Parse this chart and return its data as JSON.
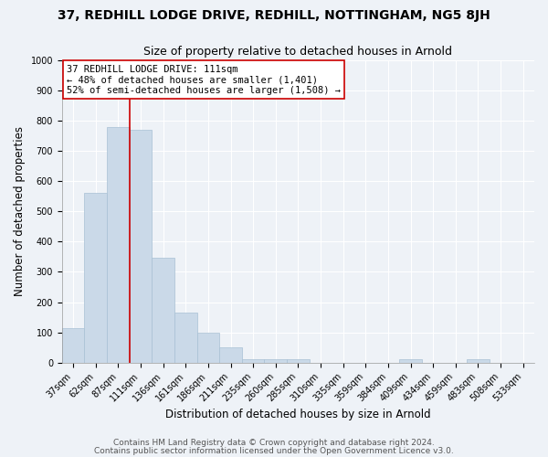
{
  "title": "37, REDHILL LODGE DRIVE, REDHILL, NOTTINGHAM, NG5 8JH",
  "subtitle": "Size of property relative to detached houses in Arnold",
  "xlabel": "Distribution of detached houses by size in Arnold",
  "ylabel": "Number of detached properties",
  "bar_labels": [
    "37sqm",
    "62sqm",
    "87sqm",
    "111sqm",
    "136sqm",
    "161sqm",
    "186sqm",
    "211sqm",
    "235sqm",
    "260sqm",
    "285sqm",
    "310sqm",
    "335sqm",
    "359sqm",
    "384sqm",
    "409sqm",
    "434sqm",
    "459sqm",
    "483sqm",
    "508sqm",
    "533sqm"
  ],
  "bar_values": [
    113,
    560,
    778,
    770,
    348,
    165,
    98,
    52,
    13,
    10,
    10,
    0,
    0,
    0,
    0,
    10,
    0,
    0,
    10,
    0,
    0
  ],
  "bar_color": "#cad9e8",
  "bar_edge_color": "#a8c0d4",
  "vline_index": 2.5,
  "vline_color": "#cc0000",
  "annotation_title": "37 REDHILL LODGE DRIVE: 111sqm",
  "annotation_line1": "← 48% of detached houses are smaller (1,401)",
  "annotation_line2": "52% of semi-detached houses are larger (1,508) →",
  "annotation_box_color": "#ffffff",
  "annotation_box_edge": "#cc0000",
  "ylim": [
    0,
    1000
  ],
  "yticks": [
    0,
    100,
    200,
    300,
    400,
    500,
    600,
    700,
    800,
    900,
    1000
  ],
  "footer1": "Contains HM Land Registry data © Crown copyright and database right 2024.",
  "footer2": "Contains public sector information licensed under the Open Government Licence v3.0.",
  "background_color": "#eef2f7",
  "grid_color": "#ffffff",
  "title_fontsize": 10,
  "subtitle_fontsize": 9,
  "tick_fontsize": 7,
  "ylabel_fontsize": 8.5,
  "xlabel_fontsize": 8.5,
  "footer_fontsize": 6.5
}
